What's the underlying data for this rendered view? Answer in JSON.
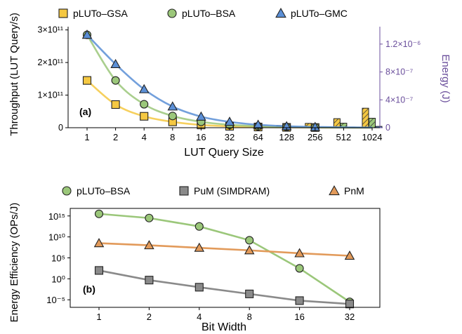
{
  "chart_data": [
    {
      "panel_label": "(a)",
      "type": "line+bar",
      "xlabel": "LUT Query Size",
      "ylabel": "Throughput (LUT Query/s)",
      "ylabel_right": "Energy (J)",
      "x_ticks": [
        "1",
        "2",
        "4",
        "8",
        "16",
        "32",
        "64",
        "128",
        "256",
        "512",
        "1024"
      ],
      "y_ticks": [
        "0",
        "1×10¹¹",
        "2×10¹¹",
        "3×10¹¹"
      ],
      "y2_ticks": [
        "0",
        "4×10⁻⁷",
        "8×10⁻⁷",
        "1.2×10⁻⁶"
      ],
      "ylim": [
        0,
        310000000000.0
      ],
      "y2lim": [
        0,
        1.45e-06
      ],
      "legend_position": "top",
      "series": [
        {
          "name": "pLUTo–GSA",
          "color": "#f5c842",
          "marker": "square",
          "throughput": [
            145000000000.0,
            71000000000.0,
            35000000000.0,
            18000000000.0,
            8500000000.0,
            4500000000.0,
            2200000000.0,
            1100000000.0,
            550000000.0,
            270000000.0,
            140000000.0
          ],
          "energy": [
            1e-12,
            2e-12,
            4e-12,
            8e-12,
            2e-11,
            5e-11,
            1e-10,
            3e-08,
            6.2e-08,
            1.3e-07,
            2.8e-07
          ]
        },
        {
          "name": "pLUTo–BSA",
          "color": "#9bc77a",
          "marker": "circle",
          "throughput": [
            285000000000.0,
            145000000000.0,
            72000000000.0,
            36000000000.0,
            18000000000.0,
            9000000000.0,
            4500000000.0,
            2200000000.0,
            1100000000.0,
            550000000.0,
            280000000.0
          ],
          "energy": [
            1e-12,
            2e-12,
            4e-12,
            8e-12,
            2e-11,
            5e-11,
            1e-10,
            1.5e-08,
            3.1e-08,
            6.5e-08,
            1.36e-07
          ]
        },
        {
          "name": "pLUTo–GMC",
          "color": "#5b8fd6",
          "marker": "triangle",
          "throughput": [
            285000000000.0,
            195000000000.0,
            118000000000.0,
            65000000000.0,
            34000000000.0,
            18000000000.0,
            9000000000.0,
            4500000000.0,
            2200000000.0,
            1100000000.0,
            550000000.0
          ],
          "energy": [
            1e-12,
            2e-12,
            4e-12,
            8e-12,
            2e-11,
            5e-11,
            1e-10,
            2e-09,
            4e-09,
            9e-09,
            1.9e-08
          ]
        }
      ]
    },
    {
      "panel_label": "(b)",
      "type": "line",
      "xlabel": "Bit Width",
      "ylabel": "Energy Efficiency (OPs/J)",
      "yscale": "log",
      "x_ticks": [
        "1",
        "2",
        "4",
        "8",
        "16",
        "32"
      ],
      "y_ticks": [
        "10⁻⁵",
        "10⁰",
        "10⁵",
        "10¹⁰",
        "10¹⁵"
      ],
      "ylim_log10": [
        -6.8,
        16.8
      ],
      "grid": false,
      "legend_position": "top",
      "series": [
        {
          "name": "pLUTo–BSA",
          "color": "#9bc77a",
          "marker": "circle",
          "log10_values": [
            15.5,
            14.5,
            12.5,
            9.2,
            2.5,
            -5.5
          ]
        },
        {
          "name": "PuM (SIMDRAM)",
          "color": "#8a8a8a",
          "marker": "square",
          "log10_values": [
            2.0,
            -0.3,
            -2.0,
            -3.6,
            -5.2,
            -6.0
          ]
        },
        {
          "name": "PnM",
          "color": "#e29a5a",
          "marker": "triangle",
          "log10_values": [
            8.5,
            8.0,
            7.4,
            6.8,
            6.1,
            5.5
          ]
        }
      ]
    }
  ]
}
